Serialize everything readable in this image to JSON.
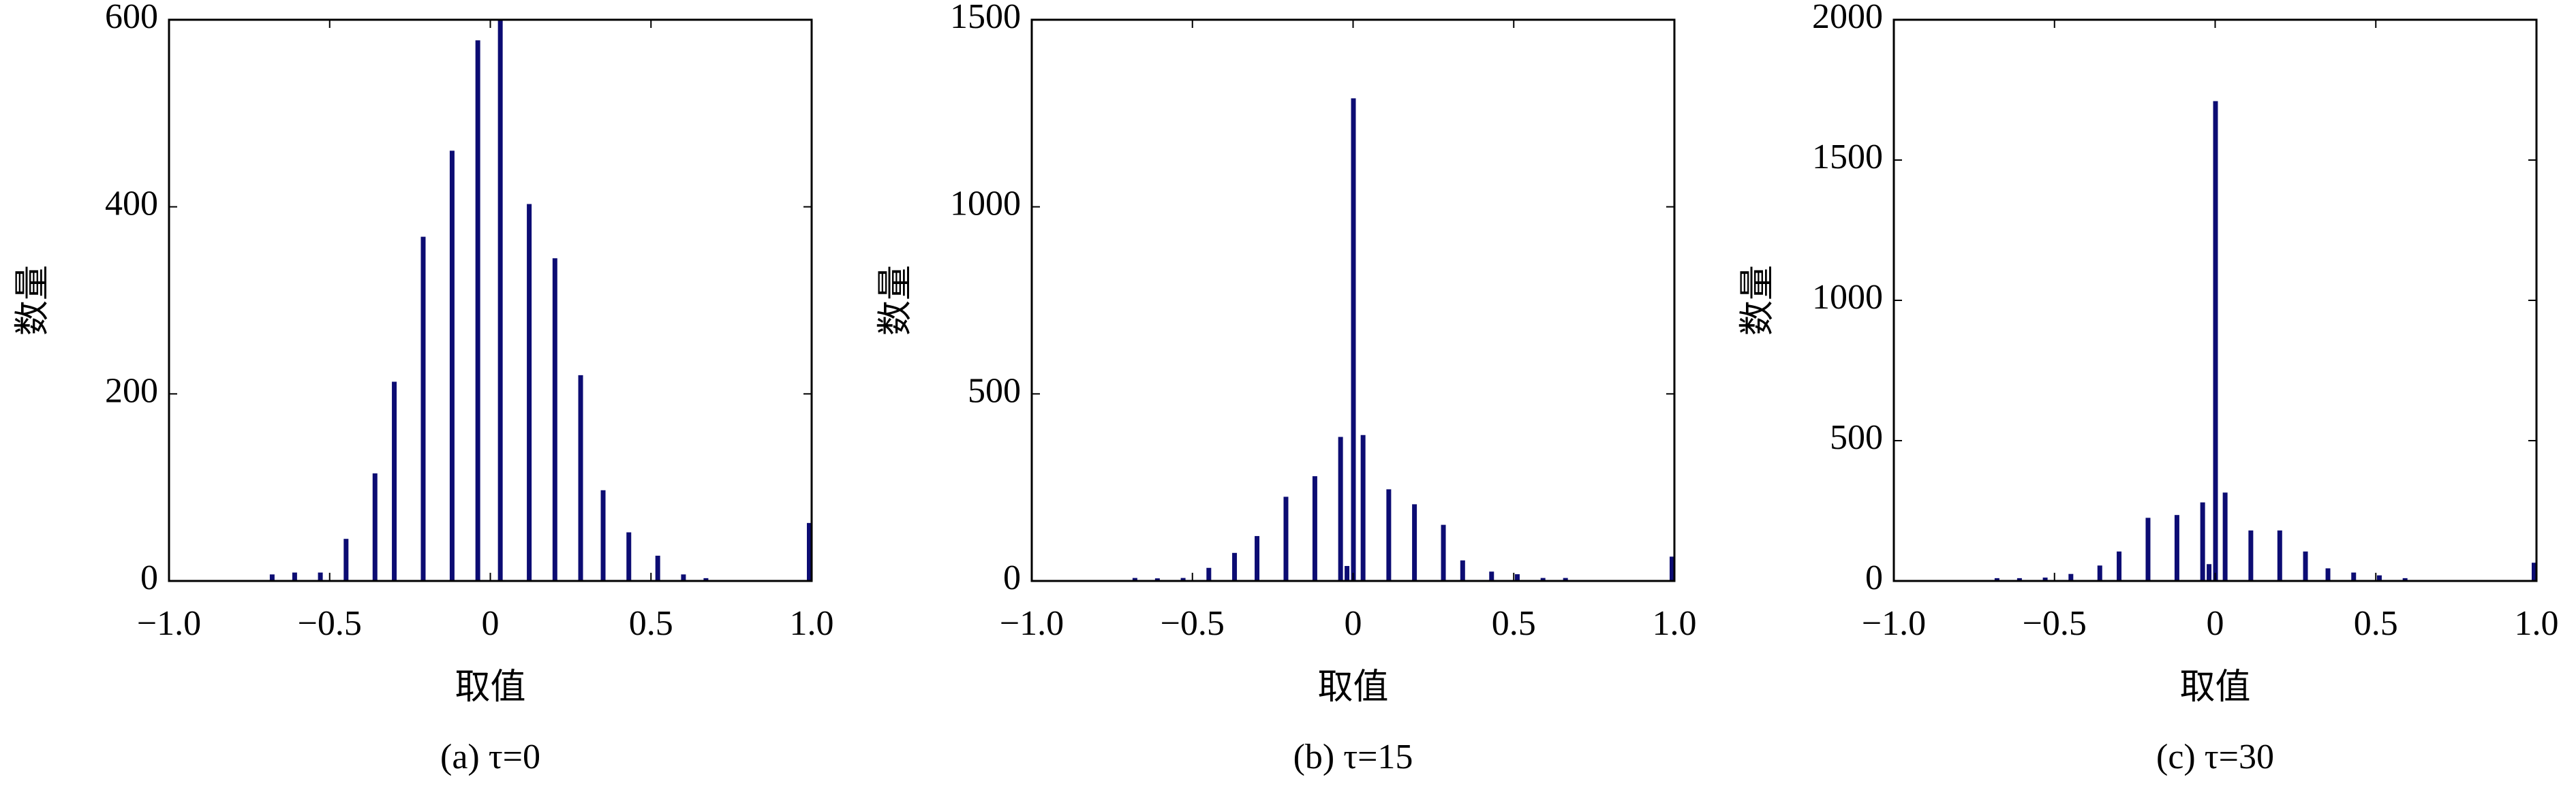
{
  "chart_data": [
    {
      "type": "bar",
      "caption": "(a) τ=0",
      "xlabel": "取值",
      "ylabel": "数量",
      "color": "#0c0c73",
      "x": [
        -0.68,
        -0.61,
        -0.53,
        -0.45,
        -0.36,
        -0.3,
        -0.21,
        -0.12,
        -0.04,
        0.03,
        0.12,
        0.2,
        0.28,
        0.35,
        0.43,
        0.52,
        0.6,
        0.67,
        1.0
      ],
      "values": [
        7,
        9,
        9,
        45,
        115,
        213,
        368,
        460,
        578,
        600,
        403,
        345,
        220,
        97,
        52,
        27,
        7,
        3,
        62
      ],
      "xlim": [
        -1,
        1
      ],
      "xticks": [
        {
          "value": -1,
          "label": "−1.0"
        },
        {
          "value": -0.5,
          "label": "−0.5"
        },
        0,
        0.5,
        {
          "value": 1,
          "label": "1.0"
        }
      ],
      "ylim": [
        0,
        600
      ],
      "yticks": [
        0,
        200,
        400,
        600
      ]
    },
    {
      "type": "bar",
      "caption": "(b) τ=15",
      "xlabel": "取值",
      "ylabel": "数量",
      "color": "#0c0c73",
      "x": [
        -0.68,
        -0.61,
        -0.53,
        -0.45,
        -0.37,
        -0.3,
        -0.21,
        -0.12,
        -0.04,
        -0.02,
        0,
        0.03,
        0.11,
        0.19,
        0.28,
        0.34,
        0.43,
        0.51,
        0.59,
        0.66,
        1.0
      ],
      "values": [
        8,
        7,
        8,
        35,
        75,
        120,
        225,
        280,
        385,
        40,
        1290,
        390,
        245,
        205,
        150,
        55,
        25,
        18,
        8,
        8,
        65
      ],
      "xlim": [
        -1,
        1
      ],
      "xticks": [
        {
          "value": -1,
          "label": "−1.0"
        },
        {
          "value": -0.5,
          "label": "−0.5"
        },
        0,
        0.5,
        {
          "value": 1,
          "label": "1.0"
        }
      ],
      "ylim": [
        0,
        1500
      ],
      "yticks": [
        0,
        500,
        1000,
        1500
      ]
    },
    {
      "type": "bar",
      "caption": "(c) τ=30",
      "xlabel": "取值",
      "ylabel": "数量",
      "color": "#0c0c73",
      "x": [
        -0.68,
        -0.61,
        -0.53,
        -0.45,
        -0.36,
        -0.3,
        -0.21,
        -0.12,
        -0.04,
        -0.02,
        0,
        0.03,
        0.11,
        0.2,
        0.28,
        0.35,
        0.43,
        0.51,
        0.59,
        1.0
      ],
      "values": [
        10,
        10,
        12,
        25,
        55,
        105,
        225,
        235,
        280,
        60,
        1710,
        315,
        180,
        180,
        105,
        45,
        30,
        20,
        10,
        65
      ],
      "xlim": [
        -1,
        1
      ],
      "xticks": [
        {
          "value": -1,
          "label": "−1.0"
        },
        {
          "value": -0.5,
          "label": "−0.5"
        },
        0,
        0.5,
        {
          "value": 1,
          "label": "1.0"
        }
      ],
      "ylim": [
        0,
        2000
      ],
      "yticks": [
        0,
        500,
        1000,
        1500,
        2000
      ]
    }
  ]
}
